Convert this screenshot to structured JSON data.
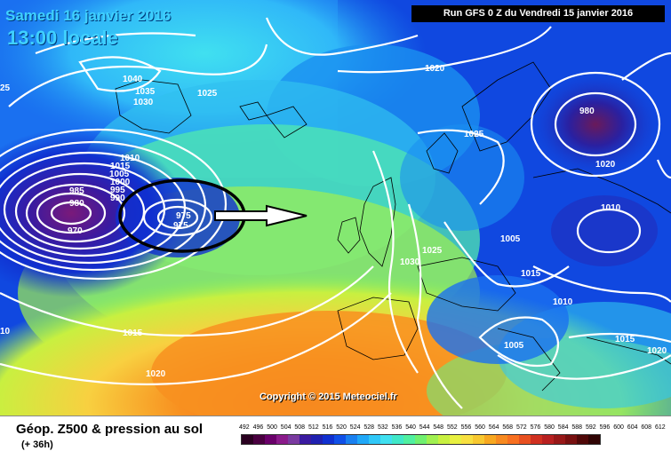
{
  "header": {
    "date_title": "Samedi 16 janvier 2016",
    "time_title": "13:00 locale",
    "run_info": "Run GFS 0 Z du Vendredi 15 janvier 2016"
  },
  "map": {
    "pressure_labels": [
      "25",
      "1040",
      "1035",
      "1030",
      "1025",
      "1020",
      "1025",
      "1010",
      "1015",
      "1005",
      "1000",
      "995",
      "990",
      "985",
      "980",
      "970",
      "975",
      "975",
      "980",
      "1010",
      "1005",
      "1020",
      "1015",
      "1010",
      "1005",
      "1015",
      "1020",
      "1030",
      "1025",
      "1015",
      "1020",
      "10"
    ],
    "annotation": "storm-encircled-with-arrow-pointing-east"
  },
  "copyright": "Copyright © 2015 Meteociel.fr",
  "legend": {
    "title": "Géop. Z500 & pression au sol",
    "subtitle": "(+ 36h)",
    "scale_values": [
      "492",
      "496",
      "500",
      "504",
      "508",
      "512",
      "516",
      "520",
      "524",
      "528",
      "532",
      "536",
      "540",
      "544",
      "548",
      "552",
      "556",
      "560",
      "564",
      "568",
      "572",
      "576",
      "580",
      "584",
      "588",
      "592",
      "596",
      "600",
      "604",
      "608",
      "612"
    ],
    "scale_colors": [
      "#2a0020",
      "#4a0040",
      "#6a006a",
      "#8a1a8a",
      "#7a3aa0",
      "#3a1aa0",
      "#2020b0",
      "#1030d0",
      "#1050e8",
      "#1a80f0",
      "#20a8f8",
      "#30c8f8",
      "#40e0f0",
      "#40e8c8",
      "#50f0a0",
      "#70f070",
      "#a0f050",
      "#c8f040",
      "#e8f040",
      "#f8e040",
      "#f8c830",
      "#f8a820",
      "#f88a20",
      "#f87020",
      "#e85020",
      "#d03020",
      "#b82020",
      "#981818",
      "#781010",
      "#500808",
      "#300404"
    ]
  }
}
